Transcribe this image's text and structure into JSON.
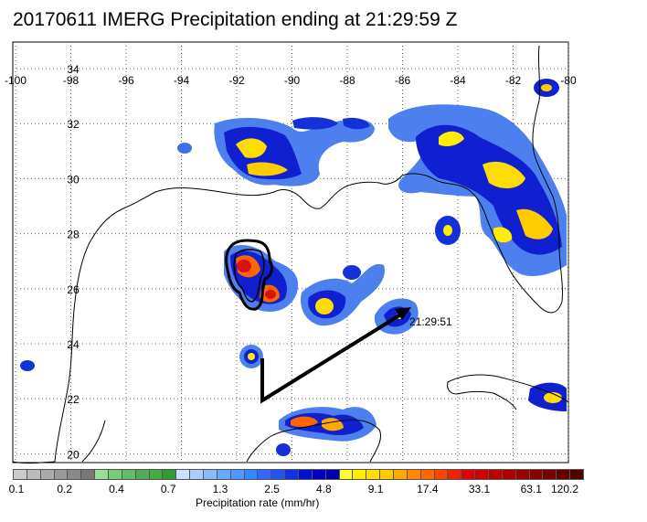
{
  "title": "20170611 IMERG Precipitation ending at 21:29:59 Z",
  "map": {
    "lon_ticks": [
      "-100",
      "-98",
      "-96",
      "-94",
      "-92",
      "-90",
      "-88",
      "-86",
      "-84",
      "-82",
      "-80"
    ],
    "lat_ticks": [
      "34",
      "32",
      "30",
      "28",
      "26",
      "24",
      "22",
      "20"
    ],
    "track_end_time": "21:29:51",
    "colors": {
      "coast": "#000000",
      "grid": "#666666",
      "track": "#000000",
      "light_blue": "#3f6fe8",
      "dark_blue": "#0f12c8",
      "yellow": "#ffee00",
      "orange": "#ff9900",
      "red": "#e01010"
    }
  },
  "colorbar": {
    "labels": [
      "0.1",
      "0.2",
      "0.4",
      "0.7",
      "1.3",
      "2.5",
      "4.8",
      "9.1",
      "17.4",
      "33.1",
      "63.1",
      "120.2"
    ],
    "title": "Precipitation rate (mm/hr)",
    "colors": [
      "#cccccc",
      "#bbbbbb",
      "#aaaaaa",
      "#999999",
      "#888888",
      "#777777",
      "#99dd99",
      "#77cc77",
      "#66bb66",
      "#55aa55",
      "#44aa44",
      "#339933",
      "#cce0ff",
      "#aaccff",
      "#88bbff",
      "#66aaff",
      "#4d99ff",
      "#3388ff",
      "#3366ff",
      "#2255ee",
      "#1133dd",
      "#0011cc",
      "#0000bb",
      "#0000aa",
      "#ffff33",
      "#ffee00",
      "#ffdd00",
      "#ffcc00",
      "#ffaa00",
      "#ff8800",
      "#ff6600",
      "#ff4400",
      "#ee2200",
      "#dd0000",
      "#cc0000",
      "#bb0000",
      "#aa0000",
      "#990000",
      "#880000",
      "#770000",
      "#660000",
      "#550000"
    ]
  }
}
